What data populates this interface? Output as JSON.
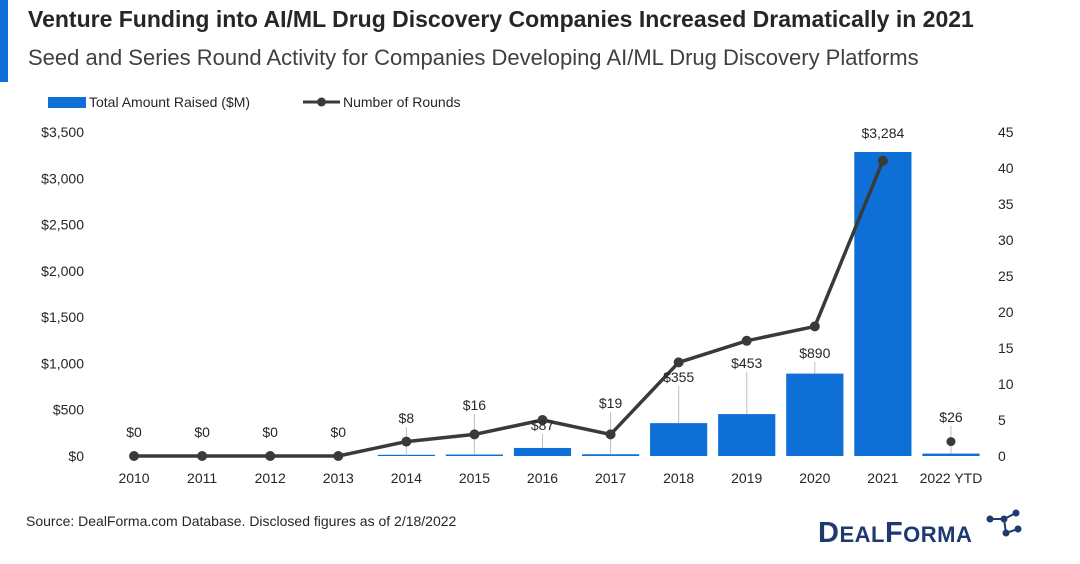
{
  "header": {
    "title": "Venture Funding into AI/ML Drug Discovery Companies Increased Dramatically in 2021",
    "subtitle": "Seed and Series Round Activity for Companies Developing AI/ML Drug Discovery Platforms"
  },
  "footer": {
    "source": "Source: DealForma.com Database. Disclosed figures as of 2/18/2022"
  },
  "logo": {
    "brand_parts": [
      "D",
      "EAL",
      "F",
      "ORMA"
    ]
  },
  "colors": {
    "bar": "#0e6fd6",
    "line": "#3a3a3a",
    "accent": "#0e6fd6",
    "logo": "#1f3a70"
  },
  "chart_data": {
    "type": "bar",
    "title": "Venture Funding into AI/ML Drug Discovery Companies Increased Dramatically in 2021",
    "categories": [
      "2010",
      "2011",
      "2012",
      "2013",
      "2014",
      "2015",
      "2016",
      "2017",
      "2018",
      "2019",
      "2020",
      "2021",
      "2022 YTD"
    ],
    "series": [
      {
        "name": "Total Amount Raised ($M)",
        "type": "bar",
        "axis": "left",
        "values": [
          0,
          0,
          0,
          0,
          8,
          16,
          87,
          19,
          355,
          453,
          890,
          3284,
          26
        ],
        "labels": [
          "$0",
          "$0",
          "$0",
          "$0",
          "$8",
          "$16",
          "$87",
          "$19",
          "$355",
          "$453",
          "$890",
          "$3,284",
          "$26"
        ]
      },
      {
        "name": "Number of Rounds",
        "type": "line",
        "axis": "right",
        "values": [
          0,
          0,
          0,
          0,
          2,
          3,
          5,
          3,
          13,
          16,
          18,
          41,
          2
        ]
      }
    ],
    "y_left": {
      "ylim": [
        0,
        3500
      ],
      "ticks": [
        0,
        500,
        1000,
        1500,
        2000,
        2500,
        3000,
        3500
      ],
      "tick_labels": [
        "$0",
        "$500",
        "$1,000",
        "$1,500",
        "$2,000",
        "$2,500",
        "$3,000",
        "$3,500"
      ]
    },
    "y_right": {
      "ylim": [
        0,
        45
      ],
      "ticks": [
        0,
        5,
        10,
        15,
        20,
        25,
        30,
        35,
        40,
        45
      ],
      "tick_labels": [
        "0",
        "5",
        "10",
        "15",
        "20",
        "25",
        "30",
        "35",
        "40",
        "45"
      ]
    },
    "legend": "top-left",
    "grid": false
  }
}
